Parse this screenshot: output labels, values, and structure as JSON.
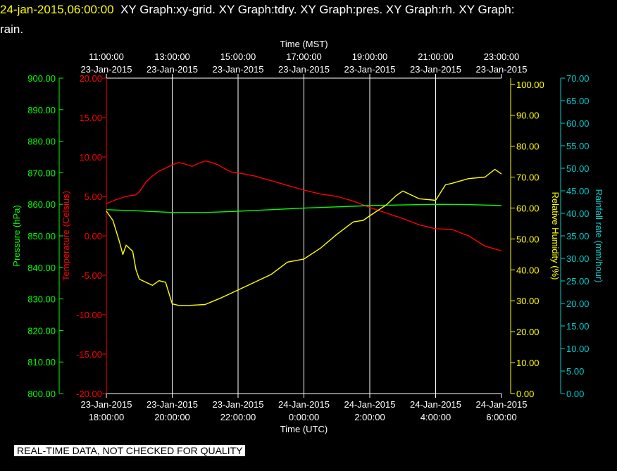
{
  "header": {
    "timestamp": "24-jan-2015,06:00:00",
    "line1": "XY Graph:xy-grid.  XY Graph:tdry.  XY Graph:pres.  XY Graph:rh.  XY Graph:",
    "line2": "rain."
  },
  "notice": "REAL-TIME DATA, NOT CHECKED FOR QUALITY",
  "colors": {
    "temperature": "#ff0000",
    "pressure": "#00ff00",
    "humidity": "#ffff00",
    "rain": "#00cccc",
    "grid": "#ffffff",
    "axis_text": "#ffffff"
  },
  "chart_data": {
    "type": "line",
    "grid": true,
    "x_bottom": {
      "label": "Time (UTC)",
      "ticks": [
        {
          "date": "23-Jan-2015",
          "time": "18:00:00"
        },
        {
          "date": "23-Jan-2015",
          "time": "20:00:00"
        },
        {
          "date": "23-Jan-2015",
          "time": "22:00:00"
        },
        {
          "date": "24-Jan-2015",
          "time": "0:00:00"
        },
        {
          "date": "24-Jan-2015",
          "time": "2:00:00"
        },
        {
          "date": "24-Jan-2015",
          "time": "4:00:00"
        },
        {
          "date": "24-Jan-2015",
          "time": "6:00:00"
        }
      ]
    },
    "x_top": {
      "label": "Time (MST)",
      "ticks": [
        {
          "time": "11:00:00",
          "date": "23-Jan-2015"
        },
        {
          "time": "13:00:00",
          "date": "23-Jan-2015"
        },
        {
          "time": "15:00:00",
          "date": "23-Jan-2015"
        },
        {
          "time": "17:00:00",
          "date": "23-Jan-2015"
        },
        {
          "time": "19:00:00",
          "date": "23-Jan-2015"
        },
        {
          "time": "21:00:00",
          "date": "23-Jan-2015"
        },
        {
          "time": "23:00:00",
          "date": "23-Jan-2015"
        }
      ]
    },
    "x_hours_range": [
      0,
      12
    ],
    "axes": {
      "pressure": {
        "label": "Pressure (hPa)",
        "range": [
          800,
          900
        ],
        "ticks": [
          "800.00",
          "810.00",
          "820.00",
          "830.00",
          "840.00",
          "850.00",
          "860.00",
          "870.00",
          "880.00",
          "890.00",
          "900.00"
        ]
      },
      "temperature": {
        "label": "Temperature (Celsius)",
        "range": [
          -20,
          20
        ],
        "ticks": [
          "-20.00",
          "-15.00",
          "-10.00",
          "-5.00",
          "0.00",
          "5.00",
          "10.00",
          "15.00",
          "20.00"
        ]
      },
      "humidity": {
        "label": "Relative Humidity (%)",
        "range": [
          0,
          102
        ],
        "ticks": [
          "0.00",
          "10.00",
          "20.00",
          "30.00",
          "40.00",
          "50.00",
          "60.00",
          "70.00",
          "80.00",
          "90.00",
          "100.00"
        ]
      },
      "rain": {
        "label": "Rainfall rate (mm/hour)",
        "range": [
          0,
          70
        ],
        "ticks": [
          "0.00",
          "5.00",
          "10.00",
          "15.00",
          "20.00",
          "25.00",
          "30.00",
          "35.00",
          "40.00",
          "45.00",
          "50.00",
          "55.00",
          "60.00",
          "65.00",
          "70.00"
        ]
      }
    },
    "series": [
      {
        "key": "temperature",
        "x": [
          0,
          0.3,
          0.6,
          0.9,
          1.0,
          1.2,
          1.4,
          1.6,
          1.8,
          2.0,
          2.2,
          2.4,
          2.6,
          2.8,
          3.0,
          3.2,
          3.4,
          3.6,
          3.8,
          4.0,
          4.5,
          5.0,
          5.5,
          6.0,
          6.5,
          7.0,
          7.5,
          8.0,
          8.5,
          9.0,
          9.5,
          10.0,
          10.5,
          11.0,
          11.5,
          12.0
        ],
        "y": [
          4.1,
          4.6,
          5.0,
          5.2,
          5.6,
          6.8,
          7.6,
          8.2,
          8.6,
          9.0,
          9.3,
          9.1,
          8.8,
          9.2,
          9.5,
          9.3,
          9.0,
          8.5,
          8.1,
          8.0,
          7.6,
          7.0,
          6.4,
          5.8,
          5.3,
          5.0,
          4.4,
          3.6,
          2.9,
          2.2,
          1.4,
          0.9,
          0.8,
          0.0,
          -1.3,
          -1.9
        ]
      },
      {
        "key": "pressure",
        "x": [
          0,
          1,
          2,
          3,
          4,
          5,
          6,
          7,
          8,
          9,
          10,
          11,
          12
        ],
        "y": [
          858.3,
          857.9,
          857.4,
          857.4,
          857.8,
          858.3,
          858.8,
          859.2,
          859.6,
          859.8,
          860.0,
          859.9,
          859.6
        ]
      },
      {
        "key": "humidity",
        "x": [
          0,
          0.2,
          0.4,
          0.5,
          0.6,
          0.8,
          0.9,
          1.0,
          1.2,
          1.4,
          1.6,
          1.8,
          2.0,
          2.2,
          2.5,
          3.0,
          3.5,
          4.0,
          4.5,
          5.0,
          5.5,
          6.0,
          6.5,
          7.0,
          7.5,
          7.8,
          8.0,
          8.5,
          8.8,
          9.0,
          9.3,
          9.5,
          10.0,
          10.3,
          10.5,
          11.0,
          11.5,
          11.8,
          12.0
        ],
        "y": [
          59.0,
          56.0,
          49.0,
          45.0,
          48.0,
          46.0,
          40.0,
          37.0,
          36.0,
          35.0,
          36.5,
          36.0,
          29.0,
          28.5,
          28.5,
          28.8,
          31.0,
          33.5,
          36.0,
          38.5,
          42.5,
          43.5,
          47.0,
          51.5,
          55.5,
          56.0,
          57.5,
          61.0,
          64.0,
          65.5,
          64.0,
          63.0,
          62.5,
          67.5,
          68.0,
          69.5,
          70.0,
          72.5,
          71.0
        ]
      },
      {
        "key": "rain",
        "x": [],
        "y": []
      }
    ]
  }
}
